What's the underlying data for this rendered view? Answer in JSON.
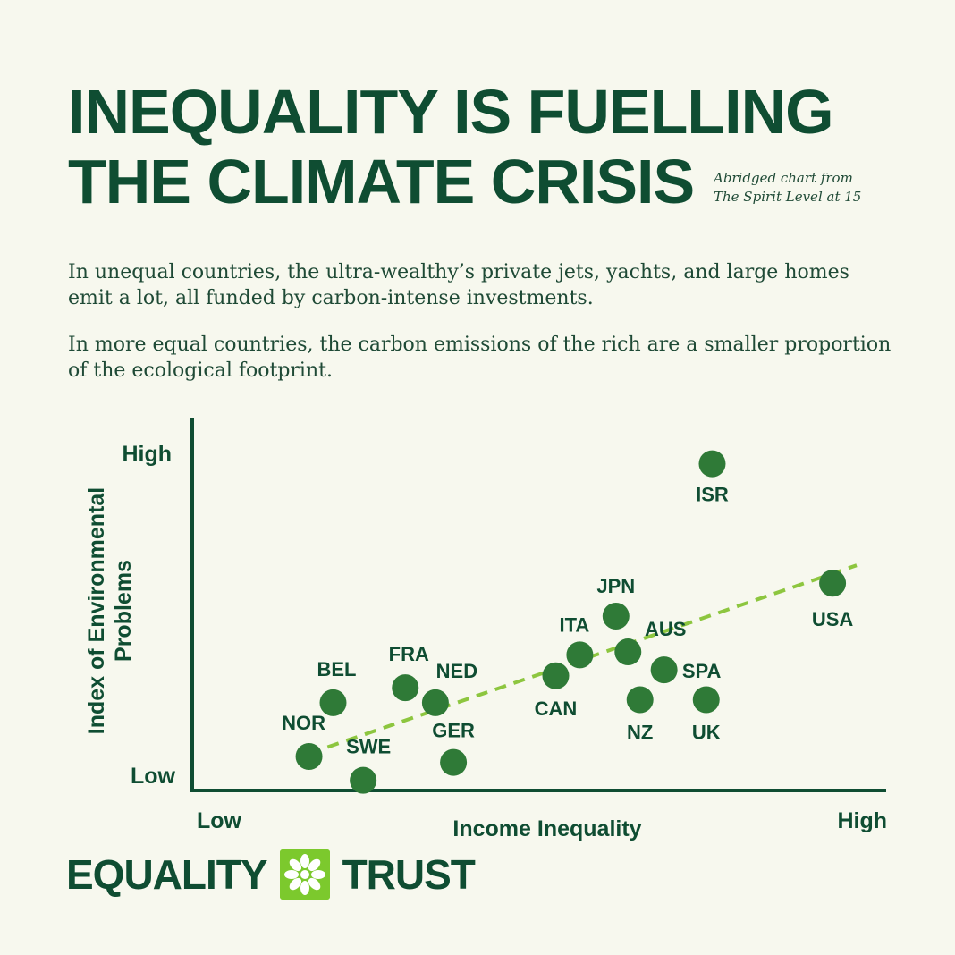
{
  "header": {
    "title_line1": "INEQUALITY IS FUELLING",
    "title_line2": "THE CLIMATE CRISIS",
    "source_line1": "Abridged chart from",
    "source_line2": "The Spirit Level at 15"
  },
  "body": {
    "paragraph1": "In unequal countries, the ultra-wealthy’s private jets, yachts, and large homes emit a lot, all funded by carbon-intense investments.",
    "paragraph2": "In more equal countries, the carbon emissions of the rich are a smaller proportion of the ecological footprint."
  },
  "chart_data": {
    "type": "scatter",
    "xlabel": "Income Inequality",
    "ylabel": "Index of Environmental Problems",
    "x_tick_labels": [
      "Low",
      "High"
    ],
    "y_tick_labels": [
      "Low",
      "High"
    ],
    "xlim": [
      0,
      100
    ],
    "ylim": [
      0,
      100
    ],
    "grid": false,
    "point_color": "#2f7a37",
    "trend_color": "#8dc63f",
    "points": [
      {
        "label": "NOR",
        "x": 9,
        "y": 6
      },
      {
        "label": "BEL",
        "x": 13,
        "y": 24
      },
      {
        "label": "SWE",
        "x": 18,
        "y": -2
      },
      {
        "label": "FRA",
        "x": 25,
        "y": 29
      },
      {
        "label": "NED",
        "x": 30,
        "y": 24
      },
      {
        "label": "GER",
        "x": 33,
        "y": 4
      },
      {
        "label": "CAN",
        "x": 50,
        "y": 33
      },
      {
        "label": "ITA",
        "x": 54,
        "y": 40
      },
      {
        "label": "JPN",
        "x": 60,
        "y": 53
      },
      {
        "label": "AUS",
        "x": 62,
        "y": 41
      },
      {
        "label": "NZ",
        "x": 64,
        "y": 25
      },
      {
        "label": "SPA",
        "x": 68,
        "y": 35
      },
      {
        "label": "UK",
        "x": 75,
        "y": 25
      },
      {
        "label": "ISR",
        "x": 76,
        "y": 104
      },
      {
        "label": "USA",
        "x": 96,
        "y": 64
      }
    ],
    "trendline": {
      "x": [
        9,
        100
      ],
      "y": [
        7,
        70
      ]
    }
  },
  "logo": {
    "left_text": "EQUALITY",
    "right_text": "TRUST",
    "brand_color": "#7cc92d"
  }
}
